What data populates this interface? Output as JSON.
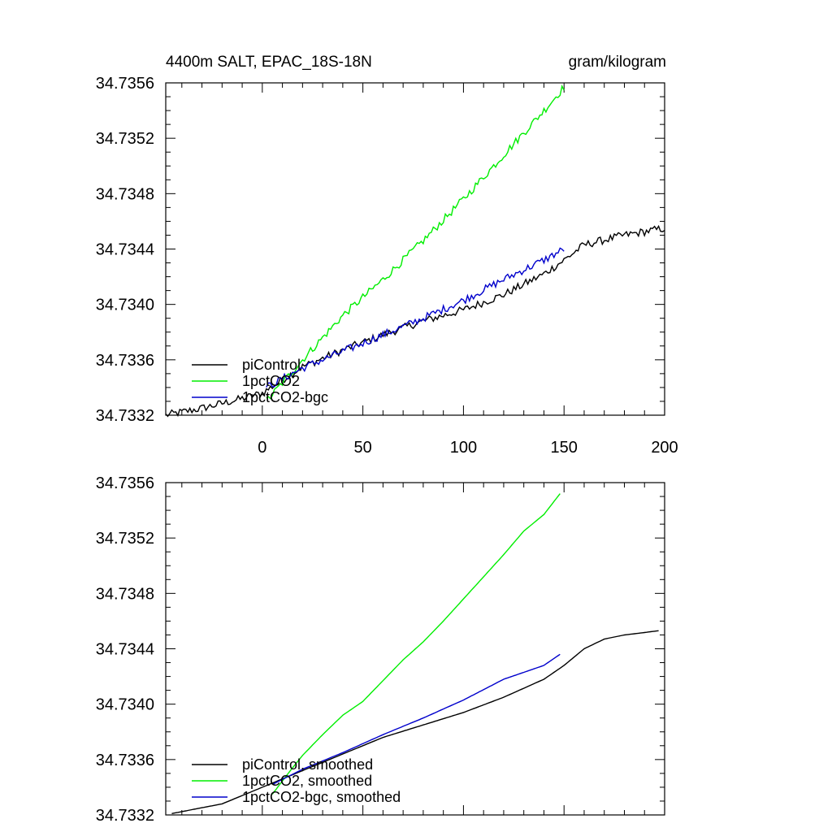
{
  "header": {
    "title": "4400m SALT, EPAC_18S-18N",
    "units": "gram/kilogram"
  },
  "colors": {
    "piControl": "#000000",
    "1pctCO2": "#00ee00",
    "1pctCO2-bgc": "#0000cc"
  },
  "chart_data": [
    {
      "type": "line",
      "panel": "top",
      "title": "4400m SALT, EPAC_18S-18N",
      "units": "gram/kilogram",
      "xlim": [
        -48,
        200
      ],
      "ylim": [
        34.7332,
        34.7356
      ],
      "x_ticks": [
        "0",
        "50",
        "100",
        "150",
        "200"
      ],
      "y_ticks": [
        "34.7332",
        "34.7336",
        "34.7340",
        "34.7344",
        "34.7348",
        "34.7352",
        "34.7356"
      ],
      "legend": [
        "piControl",
        "1pctCO2",
        "1pctCO2-bgc"
      ],
      "legend_position": "bottom-left",
      "series": [
        {
          "name": "piControl",
          "color": "#000000",
          "noisy": true,
          "x": [
            -48,
            -30,
            -10,
            0,
            20,
            40,
            60,
            80,
            100,
            120,
            140,
            150,
            160,
            180,
            200
          ],
          "y": [
            34.7332,
            34.73325,
            34.73332,
            34.73336,
            34.73355,
            34.73367,
            34.73378,
            34.73388,
            34.73396,
            34.73407,
            34.73422,
            34.73432,
            34.73443,
            34.7345,
            34.73455
          ]
        },
        {
          "name": "1pctCO2",
          "color": "#00ee00",
          "noisy": true,
          "x": [
            2,
            20,
            40,
            60,
            80,
            100,
            120,
            140,
            150
          ],
          "y": [
            34.7333,
            34.7336,
            34.73392,
            34.73418,
            34.73446,
            34.73476,
            34.73508,
            34.7354,
            34.73557
          ]
        },
        {
          "name": "1pctCO2-bgc",
          "color": "#0000cc",
          "noisy": true,
          "x": [
            2,
            20,
            40,
            60,
            80,
            100,
            120,
            140,
            150
          ],
          "y": [
            34.7334,
            34.73354,
            34.73366,
            34.73378,
            34.7339,
            34.73403,
            34.73418,
            34.73432,
            34.7344
          ]
        }
      ]
    },
    {
      "type": "line",
      "panel": "bottom",
      "xlim": [
        -48,
        200
      ],
      "ylim": [
        34.7332,
        34.7356
      ],
      "y_ticks": [
        "34.7332",
        "34.7336",
        "34.7340",
        "34.7344",
        "34.7348",
        "34.7352",
        "34.7356"
      ],
      "legend": [
        "piControl, smoothed",
        "1pctCO2, smoothed",
        "1pctCO2-bgc, smoothed"
      ],
      "legend_position": "bottom-left",
      "series": [
        {
          "name": "piControl, smoothed",
          "color": "#000000",
          "noisy": false,
          "x": [
            -45,
            -20,
            0,
            20,
            40,
            60,
            80,
            100,
            120,
            140,
            150,
            160,
            170,
            180,
            197
          ],
          "y": [
            34.73321,
            34.73328,
            34.7334,
            34.73352,
            34.73364,
            34.73376,
            34.73385,
            34.73394,
            34.73405,
            34.73418,
            34.73428,
            34.7344,
            34.73447,
            34.7345,
            34.73453
          ]
        },
        {
          "name": "1pctCO2, smoothed",
          "color": "#00ee00",
          "noisy": false,
          "x": [
            5,
            15,
            20,
            30,
            40,
            50,
            60,
            70,
            80,
            90,
            100,
            110,
            120,
            130,
            140,
            148
          ],
          "y": [
            34.73335,
            34.73354,
            34.73363,
            34.73378,
            34.73392,
            34.73402,
            34.73417,
            34.73432,
            34.73445,
            34.7346,
            34.73476,
            34.73492,
            34.73508,
            34.73525,
            34.73537,
            34.73552
          ]
        },
        {
          "name": "1pctCO2-bgc, smoothed",
          "color": "#0000cc",
          "noisy": false,
          "x": [
            5,
            20,
            40,
            60,
            80,
            100,
            120,
            140,
            148
          ],
          "y": [
            34.73342,
            34.73353,
            34.73365,
            34.73378,
            34.7339,
            34.73403,
            34.73418,
            34.73428,
            34.73436
          ]
        }
      ]
    }
  ]
}
